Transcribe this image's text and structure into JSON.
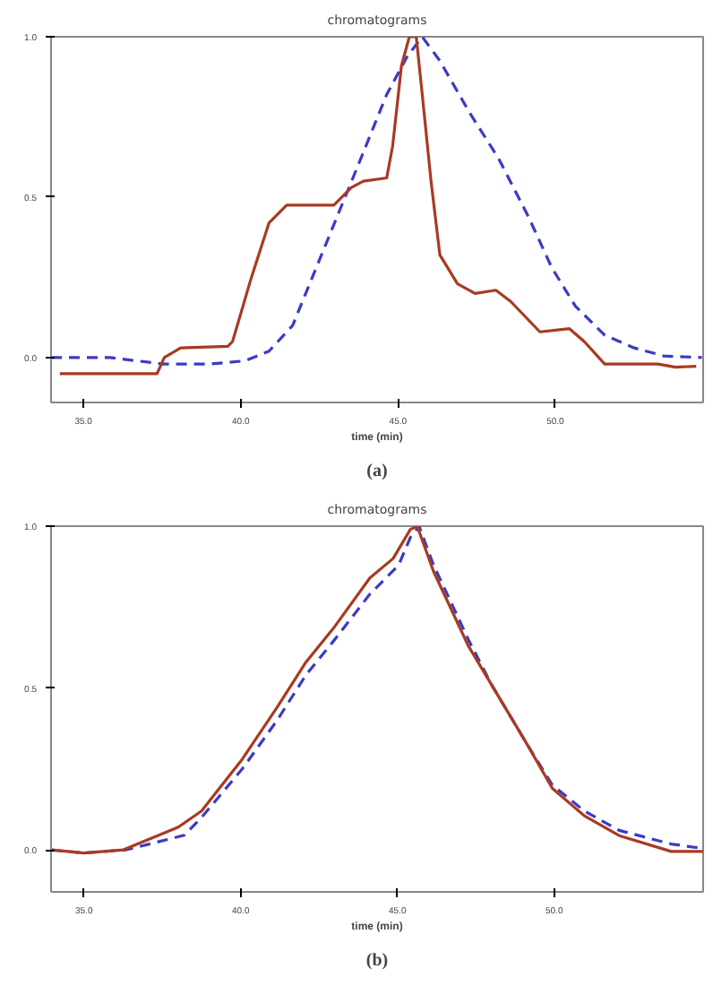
{
  "chart_data": [
    {
      "type": "line",
      "title": "chromatograms",
      "xlabel": "time (min)",
      "annotations": [
        "(a)"
      ],
      "xlim": [
        33.97,
        54.7
      ],
      "ylim": [
        -0.14,
        1.0
      ],
      "xticks": [
        {
          "value": 35,
          "label": "35.0"
        },
        {
          "value": 40,
          "label": "40.0"
        },
        {
          "value": 45,
          "label": "45.0"
        },
        {
          "value": 50,
          "label": "50.0"
        }
      ],
      "yticks": [
        {
          "value": 0,
          "label": "0.0"
        },
        {
          "value": 0.5,
          "label": "0.5"
        },
        {
          "value": 1,
          "label": "1.0"
        }
      ],
      "grid": false,
      "marker": "none",
      "series": [
        {
          "color": "#3a3ac8",
          "line_style": "dashed",
          "x": [
            33.97,
            35.84,
            37.53,
            39.03,
            40.15,
            40.9,
            41.65,
            42.4,
            43.15,
            43.9,
            44.64,
            45.3,
            45.77,
            46.33,
            47.27,
            48.2,
            49.14,
            49.89,
            50.64,
            51.57,
            52.51,
            53.45,
            54.66
          ],
          "values": [
            0,
            0,
            -0.02,
            -0.02,
            -0.01,
            0.02,
            0.1,
            0.28,
            0.46,
            0.64,
            0.82,
            0.94,
            1.0,
            0.925,
            0.764,
            0.62,
            0.44,
            0.28,
            0.16,
            0.07,
            0.03,
            0.005,
            0
          ]
        },
        {
          "color": "#a83a22",
          "line_style": "solid",
          "x": [
            34.25,
            37.34,
            37.57,
            38.09,
            39.59,
            39.74,
            40.34,
            40.9,
            41.46,
            42.96,
            43.52,
            43.9,
            44.64,
            44.83,
            45.11,
            45.36,
            45.58,
            45.77,
            46.05,
            46.33,
            46.89,
            47.45,
            48.11,
            48.58,
            49.51,
            50.45,
            50.92,
            51.57,
            53.26,
            53.82,
            54.48
          ],
          "values": [
            -0.05,
            -0.05,
            0.0,
            0.03,
            0.035,
            0.05,
            0.25,
            0.42,
            0.475,
            0.475,
            0.53,
            0.55,
            0.56,
            0.66,
            0.91,
            1.0,
            1.0,
            0.82,
            0.55,
            0.32,
            0.23,
            0.2,
            0.21,
            0.175,
            0.08,
            0.09,
            0.05,
            -0.02,
            -0.02,
            -0.03,
            -0.027
          ]
        }
      ]
    },
    {
      "type": "line",
      "title": "chromatograms",
      "xlabel": "time (min)",
      "annotations": [
        "(b)"
      ],
      "xlim": [
        33.95,
        54.75
      ],
      "ylim": [
        -0.13,
        1.0
      ],
      "xticks": [
        {
          "value": 35,
          "label": "35.0"
        },
        {
          "value": 40,
          "label": "40.0"
        },
        {
          "value": 45,
          "label": "45.0"
        },
        {
          "value": 50,
          "label": "50.0"
        }
      ],
      "yticks": [
        {
          "value": 0,
          "label": "0.0"
        },
        {
          "value": 0.5,
          "label": "0.5"
        },
        {
          "value": 1,
          "label": "1.0"
        }
      ],
      "grid": false,
      "marker": "none",
      "series": [
        {
          "color": "#3a3ac8",
          "line_style": "dashed",
          "x": [
            33.95,
            35,
            36.35,
            38.2,
            38.75,
            40.05,
            41.16,
            42.08,
            43.0,
            44.12,
            45.04,
            45.41,
            45.69,
            46.15,
            47.26,
            48.0,
            49.11,
            49.94,
            50.96,
            52.07,
            53.73,
            54.75
          ],
          "values": [
            0,
            -0.01,
            0,
            0.045,
            0.1,
            0.25,
            0.4,
            0.54,
            0.65,
            0.79,
            0.88,
            0.965,
            1.0,
            0.88,
            0.65,
            0.51,
            0.33,
            0.2,
            0.12,
            0.06,
            0.018,
            0.004
          ]
        },
        {
          "color": "#a83a22",
          "line_style": "solid",
          "x": [
            33.95,
            35,
            36.26,
            38.01,
            38.75,
            40.05,
            41.16,
            42.08,
            43.0,
            44.12,
            44.86,
            45.41,
            45.63,
            46.15,
            47.26,
            48.0,
            49.11,
            49.94,
            50.96,
            52.07,
            53.73,
            54.75
          ],
          "values": [
            0,
            -0.01,
            0,
            0.07,
            0.12,
            0.28,
            0.44,
            0.58,
            0.69,
            0.84,
            0.9,
            0.99,
            1.0,
            0.86,
            0.63,
            0.51,
            0.33,
            0.19,
            0.105,
            0.044,
            -0.005,
            -0.005
          ]
        }
      ]
    }
  ]
}
